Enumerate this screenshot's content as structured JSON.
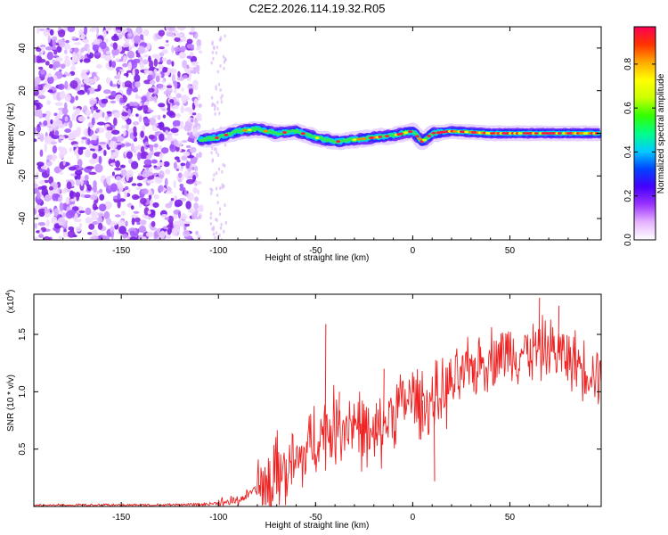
{
  "title": "C2E2.2026.114.19.32.R05",
  "chart_data": [
    {
      "type": "heatmap",
      "id": "spectrogram",
      "xlabel": "Height of straight line (km)",
      "ylabel": "Frequency (Hz)",
      "xlim": [
        -195,
        97
      ],
      "ylim": [
        -50,
        50
      ],
      "xticks": [
        -150,
        -100,
        -50,
        0,
        50
      ],
      "xtick_labels": [
        "-150",
        "-100",
        "-50",
        "0",
        "50"
      ],
      "yticks": [
        -40,
        -20,
        0,
        20,
        40
      ],
      "ytick_labels": [
        "-40",
        "-20",
        "0",
        "20",
        "40"
      ],
      "noise_region_x": [
        -195,
        -97
      ],
      "signal_start_x": -110,
      "signal_line_freq_hz": [
        {
          "x": -110,
          "f": -3
        },
        {
          "x": -100,
          "f": -2
        },
        {
          "x": -90,
          "f": 1
        },
        {
          "x": -80,
          "f": 2
        },
        {
          "x": -70,
          "f": 0
        },
        {
          "x": -60,
          "f": 1
        },
        {
          "x": -50,
          "f": -2
        },
        {
          "x": -40,
          "f": -4
        },
        {
          "x": -30,
          "f": -3
        },
        {
          "x": -20,
          "f": -2
        },
        {
          "x": -10,
          "f": -1
        },
        {
          "x": 0,
          "f": 1
        },
        {
          "x": 5,
          "f": -4
        },
        {
          "x": 10,
          "f": 0
        },
        {
          "x": 20,
          "f": 1
        },
        {
          "x": 40,
          "f": 0
        },
        {
          "x": 60,
          "f": 0
        },
        {
          "x": 97,
          "f": 0
        }
      ],
      "colorbar": {
        "label": "Normalized spectral amplitude",
        "range": [
          0.0,
          0.97
        ],
        "ticks": [
          0.0,
          0.2,
          0.4,
          0.6,
          0.8
        ],
        "tick_labels": [
          "0.0",
          "0.2",
          "0.4",
          "0.6",
          "0.8"
        ],
        "colors": [
          "#ffffff",
          "#e6b3ff",
          "#9a33ff",
          "#4400ff",
          "#0044ff",
          "#00ccff",
          "#00ff88",
          "#33ff00",
          "#ccff00",
          "#ffff00",
          "#ffaa00",
          "#ff3300",
          "#ff0055"
        ]
      }
    },
    {
      "type": "line",
      "id": "snr",
      "xlabel": "Height of straight line (km)",
      "ylabel": "SNR (10 * v/v)",
      "multiplier_label": "(x10",
      "multiplier_exp": "4",
      "multiplier_close": ")",
      "xlim": [
        -195,
        97
      ],
      "ylim": [
        0,
        1.85
      ],
      "xticks": [
        -150,
        -100,
        -50,
        0,
        50
      ],
      "xtick_labels": [
        "-150",
        "-100",
        "-50",
        "0",
        "50"
      ],
      "yticks": [
        0.5,
        1.0,
        1.5
      ],
      "ytick_labels": [
        "0.5",
        "1.0",
        "1.5"
      ],
      "color": "#ee2222",
      "series": [
        {
          "x": -195,
          "y": 0.01
        },
        {
          "x": -150,
          "y": 0.01
        },
        {
          "x": -110,
          "y": 0.015
        },
        {
          "x": -100,
          "y": 0.03
        },
        {
          "x": -90,
          "y": 0.05
        },
        {
          "x": -80,
          "y": 0.15
        },
        {
          "x": -70,
          "y": 0.3
        },
        {
          "x": -60,
          "y": 0.35
        },
        {
          "x": -50,
          "y": 0.6
        },
        {
          "x": -40,
          "y": 0.7
        },
        {
          "x": -30,
          "y": 0.75
        },
        {
          "x": -20,
          "y": 0.55
        },
        {
          "x": -10,
          "y": 0.85
        },
        {
          "x": 0,
          "y": 0.95
        },
        {
          "x": 10,
          "y": 0.9
        },
        {
          "x": 20,
          "y": 1.05
        },
        {
          "x": 30,
          "y": 1.2
        },
        {
          "x": 40,
          "y": 1.3
        },
        {
          "x": 50,
          "y": 1.35
        },
        {
          "x": 60,
          "y": 1.35
        },
        {
          "x": 70,
          "y": 1.38
        },
        {
          "x": 80,
          "y": 1.3
        },
        {
          "x": 90,
          "y": 1.2
        },
        {
          "x": 97,
          "y": 1.15
        }
      ],
      "spikes": [
        {
          "x": -45,
          "y": 1.59
        },
        {
          "x": -38,
          "y": 1.0
        },
        {
          "x": -19,
          "y": 0.9
        },
        {
          "x": -15,
          "y": 1.2
        },
        {
          "x": 5,
          "y": 0.65
        },
        {
          "x": 11,
          "y": 0.22
        },
        {
          "x": 65,
          "y": 1.82
        },
        {
          "x": 75,
          "y": 1.75
        }
      ]
    }
  ]
}
